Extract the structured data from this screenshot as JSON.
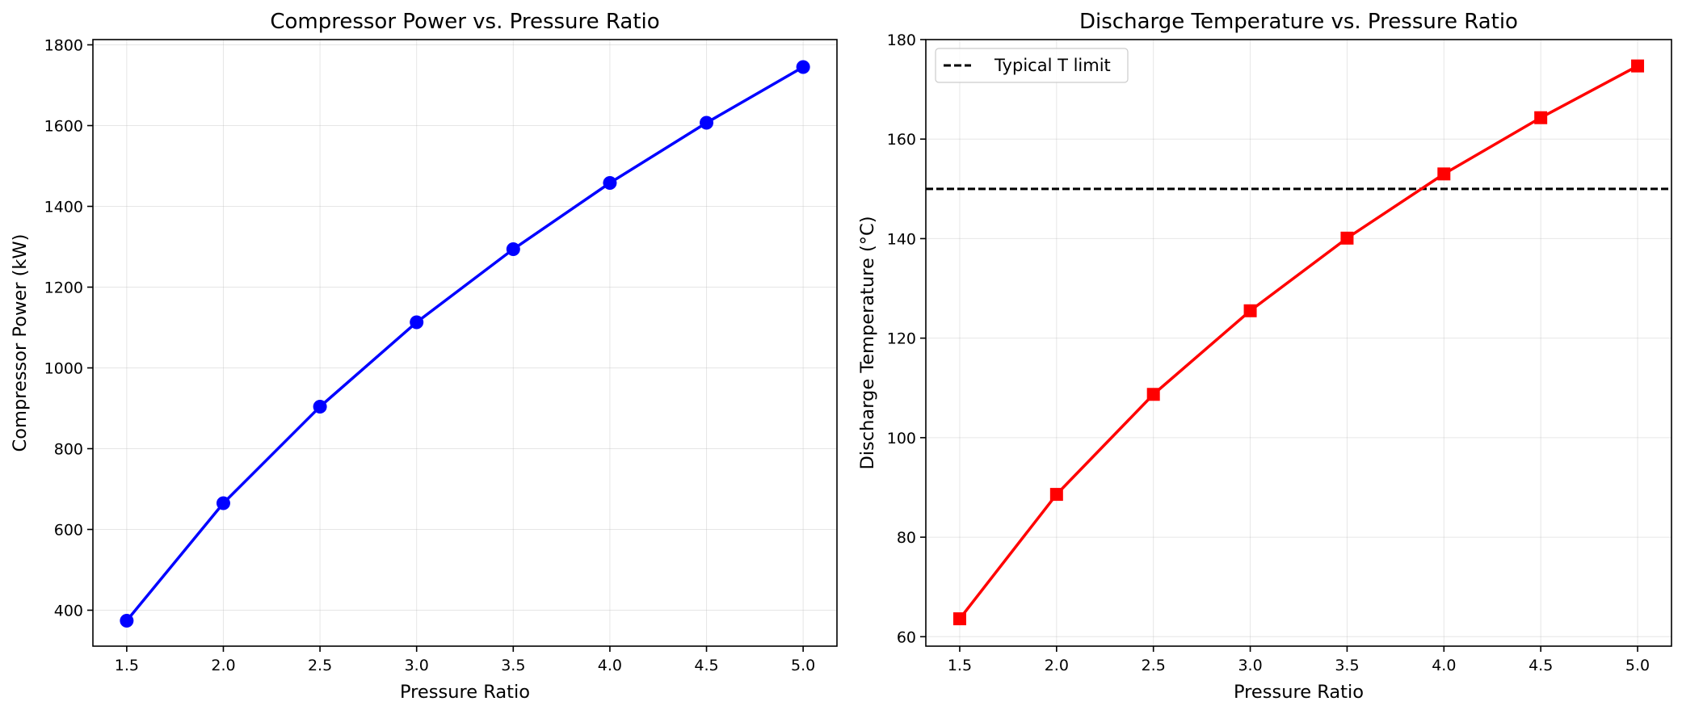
{
  "chart_data": [
    {
      "type": "line",
      "title": "Compressor Power vs. Pressure Ratio",
      "xlabel": "Pressure Ratio",
      "ylabel": "Compressor Power (kW)",
      "xlim": [
        1.325,
        5.175
      ],
      "ylim": [
        311,
        1813
      ],
      "xticks": [
        1.5,
        2.0,
        2.5,
        3.0,
        3.5,
        4.0,
        4.5,
        5.0
      ],
      "yticks": [
        400,
        600,
        800,
        1000,
        1200,
        1400,
        1600,
        1800
      ],
      "grid": true,
      "series": [
        {
          "x": [
            1.5,
            2.0,
            2.5,
            3.0,
            3.5,
            4.0,
            4.5,
            5.0
          ],
          "values": [
            374,
            665,
            904,
            1113,
            1294,
            1458,
            1607,
            1745
          ],
          "color": "#0000ff",
          "marker": "circle"
        }
      ]
    },
    {
      "type": "line",
      "title": "Discharge Temperature vs. Pressure Ratio",
      "xlabel": "Pressure Ratio",
      "ylabel": "Discharge Temperature (°C)",
      "xlim": [
        1.325,
        5.175
      ],
      "ylim": [
        58.1,
        180.0
      ],
      "xticks": [
        1.5,
        2.0,
        2.5,
        3.0,
        3.5,
        4.0,
        4.5,
        5.0
      ],
      "yticks": [
        60,
        80,
        100,
        120,
        140,
        160,
        180
      ],
      "grid": true,
      "legend": "top-left",
      "series": [
        {
          "x": [
            1.5,
            2.0,
            2.5,
            3.0,
            3.5,
            4.0,
            4.5,
            5.0
          ],
          "values": [
            63.6,
            88.6,
            108.7,
            125.5,
            140.1,
            153.0,
            164.3,
            174.7
          ],
          "color": "#ff0000",
          "marker": "square"
        }
      ],
      "reference_lines": [
        {
          "name": "Typical T limit",
          "y": 150,
          "color": "#000000",
          "style": "dashed"
        }
      ]
    }
  ]
}
